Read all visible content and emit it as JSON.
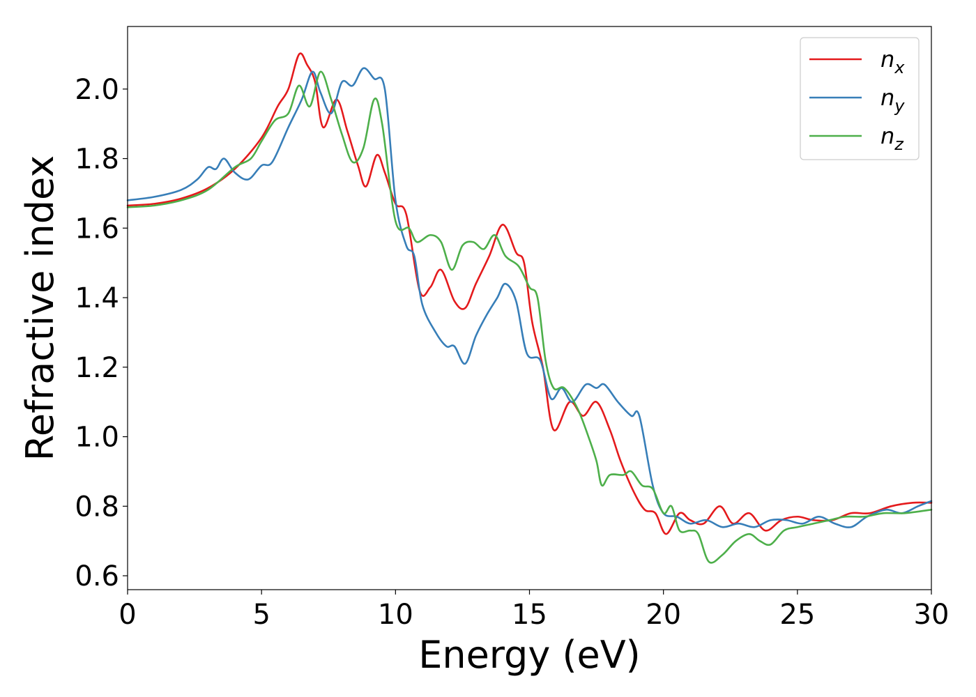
{
  "chart_data": {
    "type": "line",
    "title": "",
    "xlabel": "Energy (eV)",
    "ylabel": "Refractive index",
    "xlim": [
      0,
      30
    ],
    "ylim": [
      0.56,
      2.18
    ],
    "xticks": [
      0,
      5,
      10,
      15,
      20,
      25,
      30
    ],
    "yticks": [
      0.6,
      0.8,
      1.0,
      1.2,
      1.4,
      1.6,
      1.8,
      2.0
    ],
    "ytick_labels": [
      "0.6",
      "0.8",
      "1.0",
      "1.2",
      "1.4",
      "1.6",
      "1.8",
      "2.0"
    ],
    "grid": false,
    "legend_position": "top-right",
    "series": [
      {
        "name": "n_x",
        "label_base": "n",
        "label_sub": "x",
        "color": "#e41a1c",
        "points": [
          [
            0,
            1.665
          ],
          [
            1,
            1.67
          ],
          [
            2,
            1.685
          ],
          [
            3,
            1.715
          ],
          [
            4,
            1.77
          ],
          [
            5,
            1.86
          ],
          [
            5.6,
            1.95
          ],
          [
            6,
            2.0
          ],
          [
            6.4,
            2.1
          ],
          [
            6.7,
            2.07
          ],
          [
            7,
            2.02
          ],
          [
            7.3,
            1.89
          ],
          [
            7.8,
            1.97
          ],
          [
            8.2,
            1.88
          ],
          [
            8.6,
            1.78
          ],
          [
            8.9,
            1.72
          ],
          [
            9.3,
            1.81
          ],
          [
            9.6,
            1.76
          ],
          [
            10,
            1.67
          ],
          [
            10.4,
            1.64
          ],
          [
            10.9,
            1.42
          ],
          [
            11.3,
            1.43
          ],
          [
            11.7,
            1.48
          ],
          [
            12.2,
            1.39
          ],
          [
            12.6,
            1.37
          ],
          [
            13,
            1.44
          ],
          [
            13.5,
            1.52
          ],
          [
            14,
            1.61
          ],
          [
            14.5,
            1.53
          ],
          [
            14.8,
            1.5
          ],
          [
            15.1,
            1.33
          ],
          [
            15.5,
            1.2
          ],
          [
            15.9,
            1.02
          ],
          [
            16.5,
            1.1
          ],
          [
            17,
            1.06
          ],
          [
            17.5,
            1.1
          ],
          [
            18,
            1.02
          ],
          [
            18.4,
            0.93
          ],
          [
            18.9,
            0.84
          ],
          [
            19.3,
            0.79
          ],
          [
            19.7,
            0.78
          ],
          [
            20.1,
            0.72
          ],
          [
            20.6,
            0.78
          ],
          [
            21,
            0.76
          ],
          [
            21.5,
            0.75
          ],
          [
            22.1,
            0.8
          ],
          [
            22.6,
            0.75
          ],
          [
            23.2,
            0.78
          ],
          [
            23.8,
            0.73
          ],
          [
            24.4,
            0.76
          ],
          [
            25,
            0.77
          ],
          [
            25.6,
            0.76
          ],
          [
            26.3,
            0.76
          ],
          [
            27,
            0.78
          ],
          [
            27.7,
            0.78
          ],
          [
            28.5,
            0.8
          ],
          [
            29.3,
            0.81
          ],
          [
            30,
            0.81
          ]
        ]
      },
      {
        "name": "n_y",
        "label_base": "n",
        "label_sub": "y",
        "color": "#377eb8",
        "points": [
          [
            0,
            1.68
          ],
          [
            1,
            1.69
          ],
          [
            2,
            1.71
          ],
          [
            2.6,
            1.74
          ],
          [
            3,
            1.775
          ],
          [
            3.3,
            1.77
          ],
          [
            3.6,
            1.8
          ],
          [
            4,
            1.76
          ],
          [
            4.5,
            1.74
          ],
          [
            5,
            1.78
          ],
          [
            5.4,
            1.79
          ],
          [
            6,
            1.89
          ],
          [
            6.5,
            1.97
          ],
          [
            6.9,
            2.05
          ],
          [
            7.2,
            1.99
          ],
          [
            7.6,
            1.93
          ],
          [
            8,
            2.02
          ],
          [
            8.4,
            2.01
          ],
          [
            8.8,
            2.06
          ],
          [
            9.2,
            2.03
          ],
          [
            9.6,
            2.0
          ],
          [
            10,
            1.68
          ],
          [
            10.4,
            1.55
          ],
          [
            10.7,
            1.52
          ],
          [
            11,
            1.38
          ],
          [
            11.5,
            1.3
          ],
          [
            11.9,
            1.26
          ],
          [
            12.2,
            1.26
          ],
          [
            12.6,
            1.21
          ],
          [
            13,
            1.29
          ],
          [
            13.4,
            1.35
          ],
          [
            13.8,
            1.4
          ],
          [
            14.1,
            1.44
          ],
          [
            14.5,
            1.39
          ],
          [
            14.9,
            1.24
          ],
          [
            15.4,
            1.22
          ],
          [
            15.8,
            1.11
          ],
          [
            16.2,
            1.14
          ],
          [
            16.6,
            1.1
          ],
          [
            17.1,
            1.15
          ],
          [
            17.5,
            1.14
          ],
          [
            17.8,
            1.15
          ],
          [
            18.3,
            1.1
          ],
          [
            18.8,
            1.06
          ],
          [
            19.1,
            1.06
          ],
          [
            19.6,
            0.86
          ],
          [
            20,
            0.78
          ],
          [
            20.5,
            0.77
          ],
          [
            21,
            0.75
          ],
          [
            21.6,
            0.76
          ],
          [
            22.2,
            0.74
          ],
          [
            22.8,
            0.75
          ],
          [
            23.4,
            0.74
          ],
          [
            24,
            0.76
          ],
          [
            24.6,
            0.76
          ],
          [
            25.2,
            0.75
          ],
          [
            25.8,
            0.77
          ],
          [
            26.4,
            0.75
          ],
          [
            27,
            0.74
          ],
          [
            27.6,
            0.77
          ],
          [
            28.3,
            0.79
          ],
          [
            28.9,
            0.78
          ],
          [
            29.5,
            0.8
          ],
          [
            30,
            0.815
          ]
        ]
      },
      {
        "name": "n_z",
        "label_base": "n",
        "label_sub": "z",
        "color": "#4daf4a",
        "points": [
          [
            0,
            1.66
          ],
          [
            1,
            1.665
          ],
          [
            2,
            1.68
          ],
          [
            3,
            1.71
          ],
          [
            4,
            1.775
          ],
          [
            4.6,
            1.8
          ],
          [
            5,
            1.85
          ],
          [
            5.5,
            1.91
          ],
          [
            6,
            1.93
          ],
          [
            6.4,
            2.01
          ],
          [
            6.8,
            1.95
          ],
          [
            7.2,
            2.05
          ],
          [
            7.6,
            1.97
          ],
          [
            8,
            1.87
          ],
          [
            8.4,
            1.79
          ],
          [
            8.8,
            1.83
          ],
          [
            9.2,
            1.97
          ],
          [
            9.5,
            1.9
          ],
          [
            10,
            1.62
          ],
          [
            10.5,
            1.6
          ],
          [
            10.8,
            1.56
          ],
          [
            11.3,
            1.58
          ],
          [
            11.7,
            1.56
          ],
          [
            12.1,
            1.48
          ],
          [
            12.5,
            1.55
          ],
          [
            12.9,
            1.56
          ],
          [
            13.3,
            1.54
          ],
          [
            13.7,
            1.58
          ],
          [
            14.1,
            1.52
          ],
          [
            14.6,
            1.49
          ],
          [
            15,
            1.43
          ],
          [
            15.3,
            1.4
          ],
          [
            15.6,
            1.22
          ],
          [
            15.9,
            1.14
          ],
          [
            16.3,
            1.14
          ],
          [
            16.8,
            1.08
          ],
          [
            17.2,
            1.0
          ],
          [
            17.5,
            0.93
          ],
          [
            17.7,
            0.86
          ],
          [
            18,
            0.89
          ],
          [
            18.5,
            0.89
          ],
          [
            18.8,
            0.9
          ],
          [
            19.2,
            0.86
          ],
          [
            19.6,
            0.85
          ],
          [
            20,
            0.78
          ],
          [
            20.3,
            0.8
          ],
          [
            20.6,
            0.73
          ],
          [
            21,
            0.73
          ],
          [
            21.3,
            0.72
          ],
          [
            21.7,
            0.64
          ],
          [
            22.2,
            0.66
          ],
          [
            22.7,
            0.7
          ],
          [
            23.2,
            0.72
          ],
          [
            23.6,
            0.7
          ],
          [
            24,
            0.69
          ],
          [
            24.5,
            0.73
          ],
          [
            25,
            0.74
          ],
          [
            25.6,
            0.75
          ],
          [
            26.2,
            0.76
          ],
          [
            26.8,
            0.77
          ],
          [
            27.5,
            0.77
          ],
          [
            28.2,
            0.78
          ],
          [
            29,
            0.78
          ],
          [
            30,
            0.79
          ]
        ]
      }
    ]
  }
}
